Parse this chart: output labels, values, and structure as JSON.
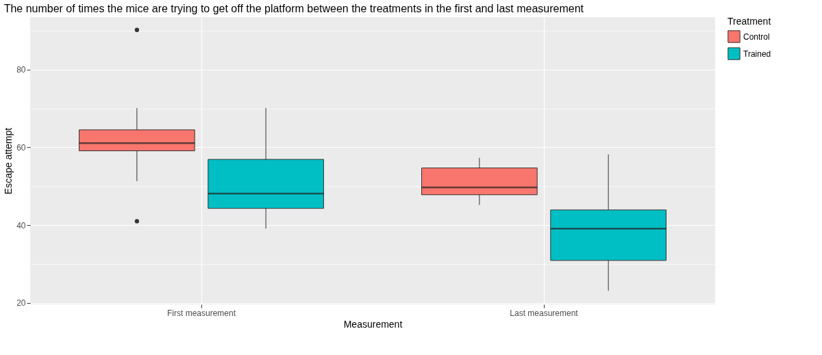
{
  "chart_data": {
    "type": "box",
    "title": "The number of times the mice are trying to get off the platform between the treatments in the first and last measurement",
    "xlabel": "Measurement",
    "ylabel": "Escape attempt",
    "legend_title": "Treatment",
    "categories": [
      "First measurement",
      "Last measurement"
    ],
    "series": [
      {
        "name": "Control",
        "color": "#f8766d",
        "boxes": [
          {
            "low": 51.3,
            "q1": 59.1,
            "median": 61.1,
            "q3": 64.5,
            "high": 70.1,
            "outliers": [
              90.2,
              41.0
            ]
          },
          {
            "low": 45.2,
            "q1": 47.8,
            "median": 49.7,
            "q3": 54.7,
            "high": 57.3
          }
        ]
      },
      {
        "name": "Trained",
        "color": "#00bfc4",
        "boxes": [
          {
            "low": 39.1,
            "q1": 44.3,
            "median": 48.1,
            "q3": 56.9,
            "high": 70.1
          },
          {
            "low": 23.1,
            "q1": 30.9,
            "median": 39.1,
            "q3": 43.9,
            "high": 58.2
          }
        ]
      }
    ],
    "ylim": [
      19.6,
      93.5
    ],
    "yticks": [
      20,
      {
        "value": 30,
        "label": null
      },
      40,
      {
        "value": 50,
        "label": null
      },
      60,
      {
        "value": 70,
        "label": null
      },
      80,
      {
        "value": 90,
        "label": null
      }
    ],
    "grid": true,
    "legend": "right"
  }
}
